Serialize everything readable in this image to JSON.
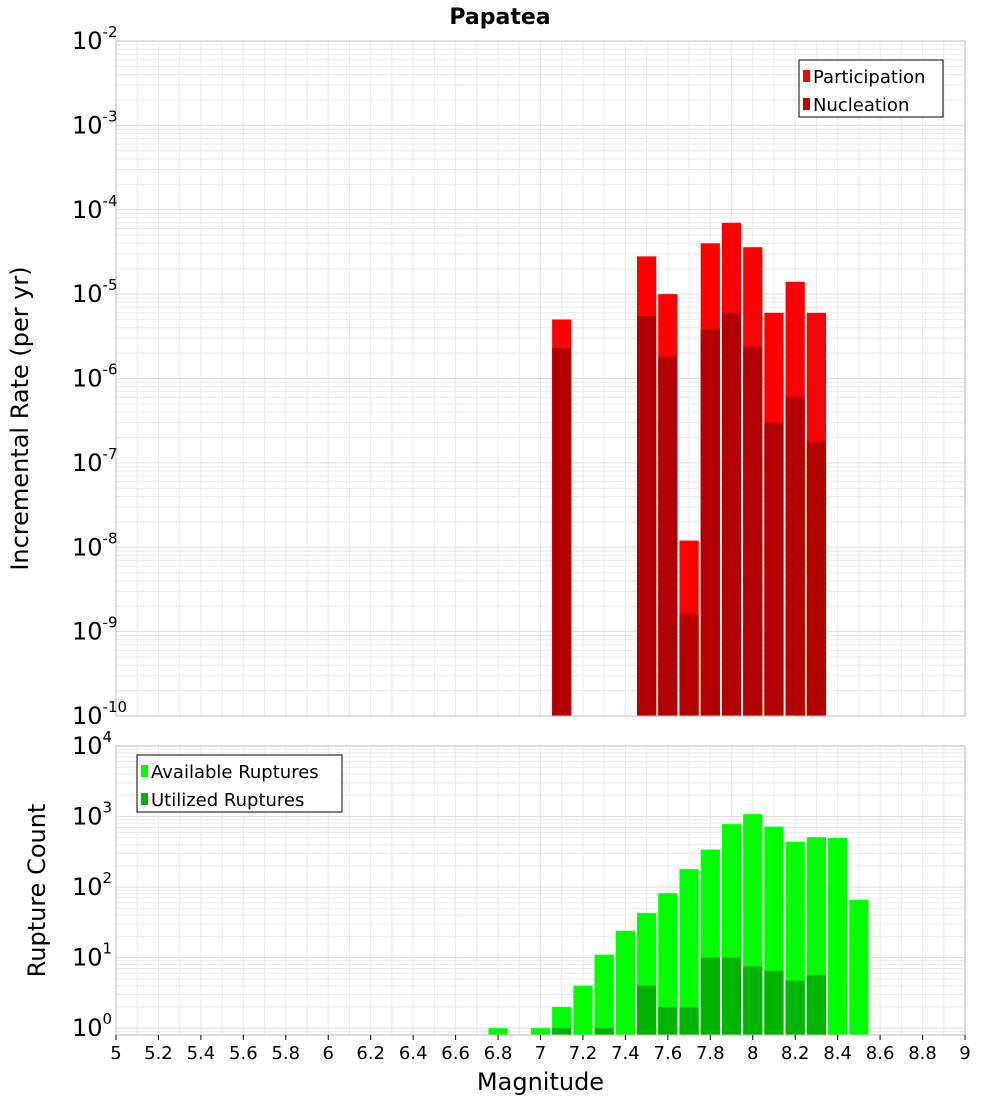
{
  "title": "Papatea",
  "colors": {
    "participation": "#ff0000",
    "nucleation": "#b30000",
    "available": "#00ff00",
    "utilized": "#00b300",
    "grid": "#e8e8e8",
    "frame": "#bbbbbb"
  },
  "chart_data": [
    {
      "type": "bar",
      "name": "rate-chart",
      "ylabel": "Incremental Rate (per yr)",
      "yscale": "log",
      "ylim": [
        1e-10,
        0.01
      ],
      "yticks": [
        {
          "base": "10",
          "exp": "-10"
        },
        {
          "base": "10",
          "exp": "-9"
        },
        {
          "base": "10",
          "exp": "-8"
        },
        {
          "base": "10",
          "exp": "-7"
        },
        {
          "base": "10",
          "exp": "-6"
        },
        {
          "base": "10",
          "exp": "-5"
        },
        {
          "base": "10",
          "exp": "-4"
        },
        {
          "base": "10",
          "exp": "-3"
        },
        {
          "base": "10",
          "exp": "-2"
        }
      ],
      "legend": {
        "position": "top-right",
        "entries": [
          "Participation",
          "Nucleation"
        ]
      },
      "series": [
        {
          "name": "Participation",
          "x": [
            7.1,
            7.5,
            7.6,
            7.7,
            7.8,
            7.9,
            8.0,
            8.1,
            8.2,
            8.3
          ],
          "values": [
            5e-06,
            2.8e-05,
            1e-05,
            1.2e-08,
            4e-05,
            7e-05,
            3.6e-05,
            6e-06,
            1.4e-05,
            6e-06
          ]
        },
        {
          "name": "Nucleation",
          "x": [
            7.1,
            7.5,
            7.6,
            7.7,
            7.8,
            7.9,
            8.0,
            8.1,
            8.2,
            8.3
          ],
          "values": [
            2.3e-06,
            5.5e-06,
            1.8e-06,
            1.6e-09,
            3.8e-06,
            6e-06,
            2.4e-06,
            3e-07,
            6e-07,
            1.8e-07
          ]
        }
      ]
    },
    {
      "type": "bar",
      "name": "count-chart",
      "ylabel": "Rupture Count",
      "xlabel": "Magnitude",
      "yscale": "log",
      "ylim": [
        0.8,
        10000
      ],
      "yticks": [
        {
          "base": "10",
          "exp": "0"
        },
        {
          "base": "10",
          "exp": "1"
        },
        {
          "base": "10",
          "exp": "2"
        },
        {
          "base": "10",
          "exp": "3"
        },
        {
          "base": "10",
          "exp": "4"
        }
      ],
      "xlim": [
        5,
        9
      ],
      "xticks": [
        "5",
        "5.2",
        "5.4",
        "5.6",
        "5.8",
        "6",
        "6.2",
        "6.4",
        "6.6",
        "6.8",
        "7",
        "7.2",
        "7.4",
        "7.6",
        "7.8",
        "8",
        "8.2",
        "8.4",
        "8.6",
        "8.8",
        "9"
      ],
      "legend": {
        "position": "top-left",
        "entries": [
          "Available Ruptures",
          "Utilized Ruptures"
        ]
      },
      "series": [
        {
          "name": "Available Ruptures",
          "x": [
            6.8,
            7.0,
            7.1,
            7.2,
            7.3,
            7.4,
            7.5,
            7.6,
            7.7,
            7.8,
            7.9,
            8.0,
            8.1,
            8.2,
            8.3,
            8.4,
            8.5
          ],
          "values": [
            1,
            1,
            2,
            4,
            11,
            24,
            43,
            82,
            180,
            340,
            780,
            1080,
            720,
            440,
            510,
            500,
            66
          ]
        },
        {
          "name": "Utilized Ruptures",
          "x": [
            7.1,
            7.3,
            7.5,
            7.6,
            7.7,
            7.8,
            7.9,
            8.0,
            8.1,
            8.2,
            8.3
          ],
          "values": [
            1,
            1,
            4,
            2,
            2,
            10,
            10,
            7.5,
            6.5,
            4.7,
            5.7
          ]
        }
      ]
    }
  ]
}
